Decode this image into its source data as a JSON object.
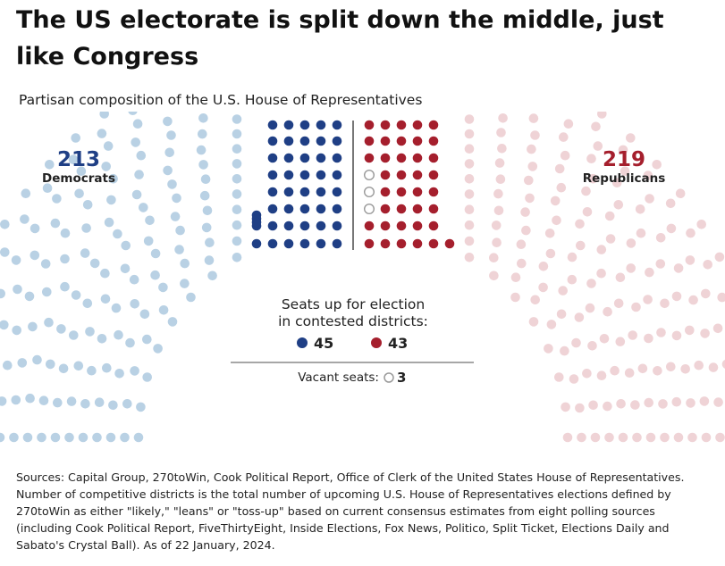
{
  "title": "The US electorate is split down the middle, just like Congress",
  "subtitle": "Partisan composition of the U.S. House of Representatives",
  "sources": "Sources: Capital Group, 270toWin, Cook Political Report, Office of Clerk of the United States House of Representatives. Number of competitive districts is the total number of upcoming U.S. House of Representatives elections defined by 270toWin as either \"likely,\" \"leans\" or \"toss-up\" based on current consensus estimates from eight polling sources (including Cook Political Report, FiveThirtyEight, Inside Elections, Fox News, Politico, Split Ticket, Elections Daily and Sabato's Crystal Ball). As of 22 January, 2024.",
  "chart_data": {
    "type": "parliament",
    "parties": [
      {
        "key": "dem",
        "name": "Democrats",
        "seats": 213,
        "contested": 45
      },
      {
        "key": "rep",
        "name": "Republicans",
        "seats": 219,
        "contested": 43
      }
    ],
    "vacant": {
      "label": "Vacant seats:",
      "seats": 3
    },
    "contested_label_line1": "Seats up for election",
    "contested_label_line2": "in contested districts:",
    "colors": {
      "dem_contested": "#1f3f85",
      "dem_safe": "#b9d1e4",
      "rep_contested": "#a51f2d",
      "rep_safe": "#efd3d6",
      "vacant": "#9a9a9a"
    }
  }
}
